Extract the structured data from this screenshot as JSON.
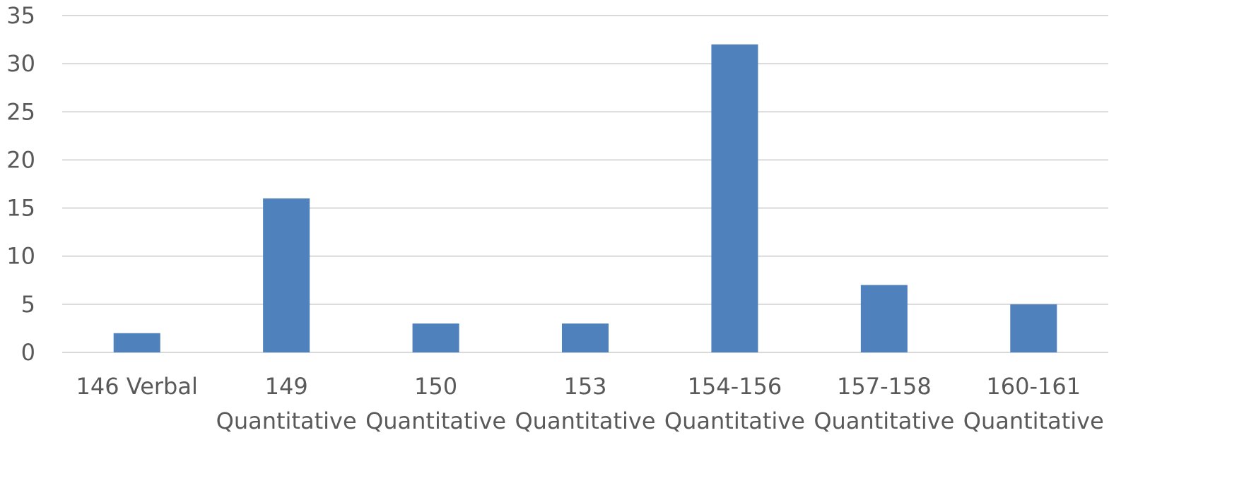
{
  "chart_data": {
    "type": "bar",
    "title": "",
    "xlabel": "",
    "ylabel": "",
    "categories": [
      [
        "146 Verbal"
      ],
      [
        "149",
        "Quantitative"
      ],
      [
        "150",
        "Quantitative"
      ],
      [
        "153",
        "Quantitative"
      ],
      [
        "154-156",
        "Quantitative"
      ],
      [
        "157-158",
        "Quantitative"
      ],
      [
        "160-161",
        "Quantitative"
      ]
    ],
    "series": [
      {
        "values": [
          2,
          16,
          3,
          3,
          32,
          7,
          5
        ],
        "color": "#4F81BD"
      }
    ],
    "ylim": [
      0,
      35
    ],
    "yticks": [
      0,
      5,
      10,
      15,
      20,
      25,
      30,
      35
    ],
    "grid": true,
    "legend": "none",
    "colors": {
      "bar": "#4F81BD",
      "grid": "#D9D9D9",
      "text": "#595959"
    }
  }
}
